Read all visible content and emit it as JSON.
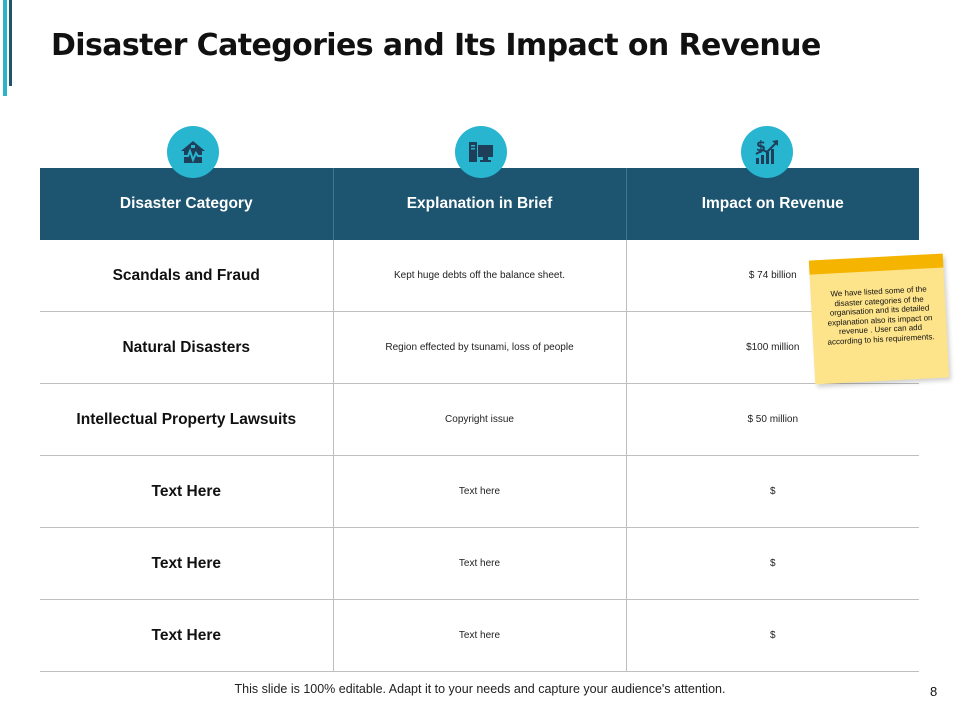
{
  "slide": {
    "title": "Disaster Categories and Its Impact on Revenue",
    "footer": "This slide is 100% editable. Adapt it to your needs and capture your audience's attention.",
    "page_number": "8"
  },
  "icons": [
    "house-disaster-icon",
    "computer-monitor-icon",
    "dollar-growth-icon"
  ],
  "colors": {
    "header_bg": "#1d5570",
    "icon_bg": "#27b5d0",
    "accent": "#2bb3c9",
    "note_bg": "#fde38a",
    "note_tape": "#f5b400"
  },
  "table": {
    "headers": [
      "Disaster Category",
      "Explanation in Brief",
      "Impact on Revenue"
    ],
    "rows": [
      {
        "category": "Scandals and Fraud",
        "explanation": "Kept huge debts off the balance sheet.",
        "impact": "$ 74 billion"
      },
      {
        "category": "Natural Disasters",
        "explanation": "Region effected by tsunami, loss of people",
        "impact": "$100 million"
      },
      {
        "category": "Intellectual Property Lawsuits",
        "explanation": "Copyright issue",
        "impact": "$ 50 million"
      },
      {
        "category": "Text Here",
        "explanation": "Text here",
        "impact": "$"
      },
      {
        "category": "Text Here",
        "explanation": "Text here",
        "impact": "$"
      },
      {
        "category": "Text Here",
        "explanation": "Text here",
        "impact": "$"
      }
    ]
  },
  "sticky_note": {
    "text": "We have listed some of the disaster categories of the organisation and its detailed explanation also its impact on revenue . User can add according to his requirements."
  }
}
